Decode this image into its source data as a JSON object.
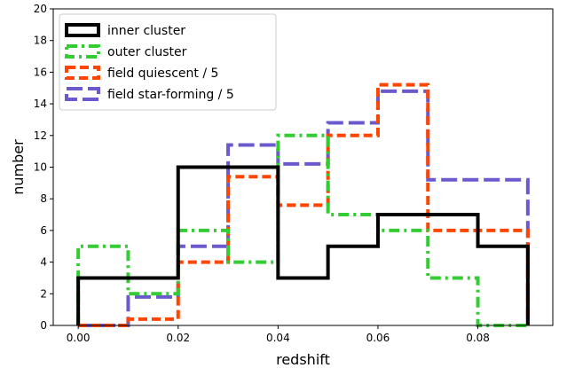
{
  "chart_data": {
    "type": "histogram-step",
    "xlabel": "redshift",
    "ylabel": "number",
    "xlim": [
      -0.005,
      0.095
    ],
    "ylim": [
      0,
      20
    ],
    "x_ticks": [
      0.0,
      0.02,
      0.04,
      0.06,
      0.08
    ],
    "x_tick_labels": [
      "0.00",
      "0.02",
      "0.04",
      "0.06",
      "0.08"
    ],
    "y_ticks": [
      0,
      2,
      4,
      6,
      8,
      10,
      12,
      14,
      16,
      18,
      20
    ],
    "y_tick_labels": [
      "0",
      "2",
      "4",
      "6",
      "8",
      "10",
      "12",
      "14",
      "16",
      "18",
      "20"
    ],
    "grid": false,
    "legend_position": "top-left",
    "bin_edges": [
      0.0,
      0.01,
      0.02,
      0.03,
      0.04,
      0.05,
      0.06,
      0.07,
      0.08,
      0.09
    ],
    "series": [
      {
        "name": "inner cluster",
        "color": "#000000",
        "dash": "solid",
        "values": [
          3,
          3,
          10,
          10,
          3,
          5,
          7,
          7,
          5
        ]
      },
      {
        "name": "outer cluster",
        "color": "#33cc33",
        "dash": "dashdot",
        "values": [
          5,
          2,
          6,
          4,
          12,
          7,
          6,
          3,
          0
        ]
      },
      {
        "name": "field quiescent / 5",
        "color": "#ff4500",
        "dash": "dashed",
        "values": [
          0,
          0.4,
          4,
          9.4,
          7.6,
          12,
          15.2,
          6,
          6
        ]
      },
      {
        "name": "field star-forming / 5",
        "color": "#6a5acd",
        "dash": "longdash",
        "values": [
          0,
          1.8,
          5,
          11.4,
          10.2,
          12.8,
          14.8,
          9.2,
          9.2
        ]
      }
    ]
  }
}
